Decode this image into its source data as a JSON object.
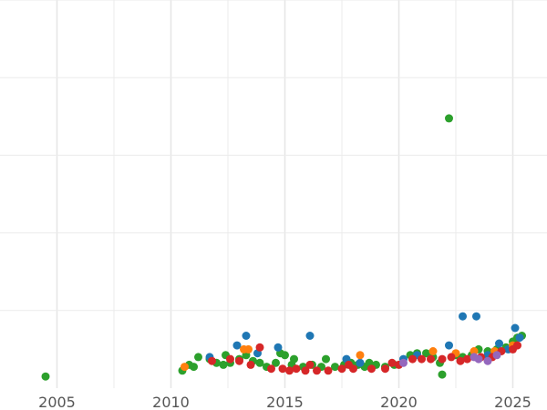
{
  "chart_data": {
    "type": "scatter",
    "title": "",
    "xlabel": "",
    "ylabel": "",
    "xlim": [
      2002.5,
      2026.5
    ],
    "ylim": [
      0,
      100
    ],
    "grid": true,
    "x_ticks": [
      2005,
      2010,
      2015,
      2020,
      2025
    ],
    "x_tick_labels": [
      "2005",
      "2010",
      "2015",
      "2020",
      "2025"
    ],
    "y_ticks": [
      20,
      40,
      60,
      80,
      100
    ],
    "colors": {
      "blue": "#1f77b4",
      "orange": "#ff7f0e",
      "green": "#2ca02c",
      "red": "#d62728",
      "purple": "#9467bd"
    },
    "series": [
      {
        "color": "#2ca02c",
        "points": [
          [
            2004.5,
            3.0
          ],
          [
            2010.5,
            4.5
          ],
          [
            2010.8,
            6.0
          ],
          [
            2011.0,
            5.5
          ],
          [
            2011.2,
            8.0
          ],
          [
            2011.7,
            7.5
          ],
          [
            2012.0,
            6.5
          ],
          [
            2012.3,
            6.0
          ],
          [
            2012.4,
            8.5
          ],
          [
            2012.6,
            6.5
          ],
          [
            2013.0,
            7.5
          ],
          [
            2013.3,
            8.5
          ],
          [
            2013.6,
            7.0
          ],
          [
            2013.9,
            6.5
          ],
          [
            2014.2,
            5.5
          ],
          [
            2014.6,
            6.5
          ],
          [
            2014.8,
            9.0
          ],
          [
            2015.0,
            8.5
          ],
          [
            2015.3,
            6.0
          ],
          [
            2015.4,
            7.5
          ],
          [
            2015.8,
            5.5
          ],
          [
            2016.2,
            6.0
          ],
          [
            2016.6,
            5.5
          ],
          [
            2016.8,
            7.5
          ],
          [
            2017.2,
            5.5
          ],
          [
            2017.6,
            6.0
          ],
          [
            2017.9,
            6.5
          ],
          [
            2018.2,
            6.0
          ],
          [
            2018.5,
            5.5
          ],
          [
            2018.7,
            6.5
          ],
          [
            2019.0,
            6.0
          ],
          [
            2019.4,
            5.5
          ],
          [
            2019.8,
            6.0
          ],
          [
            2020.5,
            8.5
          ],
          [
            2020.8,
            9.0
          ],
          [
            2021.2,
            9.0
          ],
          [
            2021.5,
            8.0
          ],
          [
            2021.8,
            6.5
          ],
          [
            2021.9,
            3.5
          ],
          [
            2022.2,
            69.5
          ],
          [
            2022.5,
            8.5
          ],
          [
            2022.8,
            8.0
          ],
          [
            2023.2,
            8.5
          ],
          [
            2023.5,
            10.0
          ],
          [
            2023.9,
            9.5
          ],
          [
            2024.3,
            10.0
          ],
          [
            2024.7,
            10.5
          ],
          [
            2025.0,
            12.0
          ],
          [
            2025.2,
            13.0
          ],
          [
            2025.4,
            13.5
          ]
        ]
      },
      {
        "color": "#1f77b4",
        "points": [
          [
            2011.7,
            8.0
          ],
          [
            2012.9,
            11.0
          ],
          [
            2013.3,
            13.5
          ],
          [
            2013.8,
            9.0
          ],
          [
            2014.7,
            10.5
          ],
          [
            2016.1,
            13.5
          ],
          [
            2017.7,
            7.5
          ],
          [
            2018.3,
            6.5
          ],
          [
            2020.2,
            7.5
          ],
          [
            2020.8,
            8.5
          ],
          [
            2022.2,
            11.0
          ],
          [
            2022.8,
            18.5
          ],
          [
            2023.4,
            18.5
          ],
          [
            2023.9,
            8.5
          ],
          [
            2024.4,
            11.5
          ],
          [
            2024.8,
            10.0
          ],
          [
            2025.1,
            15.5
          ],
          [
            2025.3,
            13.0
          ]
        ]
      },
      {
        "color": "#ff7f0e",
        "points": [
          [
            2010.6,
            5.5
          ],
          [
            2013.2,
            10.0
          ],
          [
            2013.4,
            10.0
          ],
          [
            2018.3,
            8.5
          ],
          [
            2021.5,
            9.5
          ],
          [
            2022.5,
            9.0
          ],
          [
            2023.3,
            9.5
          ],
          [
            2024.2,
            9.5
          ],
          [
            2025.0,
            11.0
          ]
        ]
      },
      {
        "color": "#d62728",
        "points": [
          [
            2011.8,
            7.0
          ],
          [
            2012.6,
            7.5
          ],
          [
            2013.0,
            7.0
          ],
          [
            2013.5,
            6.0
          ],
          [
            2013.9,
            10.5
          ],
          [
            2014.4,
            5.0
          ],
          [
            2014.9,
            5.0
          ],
          [
            2015.2,
            4.5
          ],
          [
            2015.5,
            5.0
          ],
          [
            2015.9,
            4.5
          ],
          [
            2016.1,
            6.0
          ],
          [
            2016.4,
            4.5
          ],
          [
            2016.9,
            4.5
          ],
          [
            2017.5,
            5.0
          ],
          [
            2017.8,
            6.0
          ],
          [
            2018.0,
            5.0
          ],
          [
            2018.8,
            5.0
          ],
          [
            2019.4,
            5.0
          ],
          [
            2019.7,
            6.5
          ],
          [
            2020.0,
            6.0
          ],
          [
            2020.6,
            7.5
          ],
          [
            2021.0,
            7.5
          ],
          [
            2021.4,
            7.5
          ],
          [
            2021.9,
            7.5
          ],
          [
            2022.3,
            8.0
          ],
          [
            2022.7,
            7.0
          ],
          [
            2023.0,
            7.5
          ],
          [
            2023.6,
            8.0
          ],
          [
            2024.1,
            8.0
          ],
          [
            2024.5,
            9.5
          ],
          [
            2025.0,
            10.0
          ],
          [
            2025.2,
            11.0
          ]
        ]
      },
      {
        "color": "#9467bd",
        "points": [
          [
            2020.2,
            6.5
          ],
          [
            2023.3,
            8.0
          ],
          [
            2023.5,
            7.5
          ],
          [
            2023.9,
            7.0
          ],
          [
            2024.3,
            8.5
          ]
        ]
      }
    ]
  }
}
